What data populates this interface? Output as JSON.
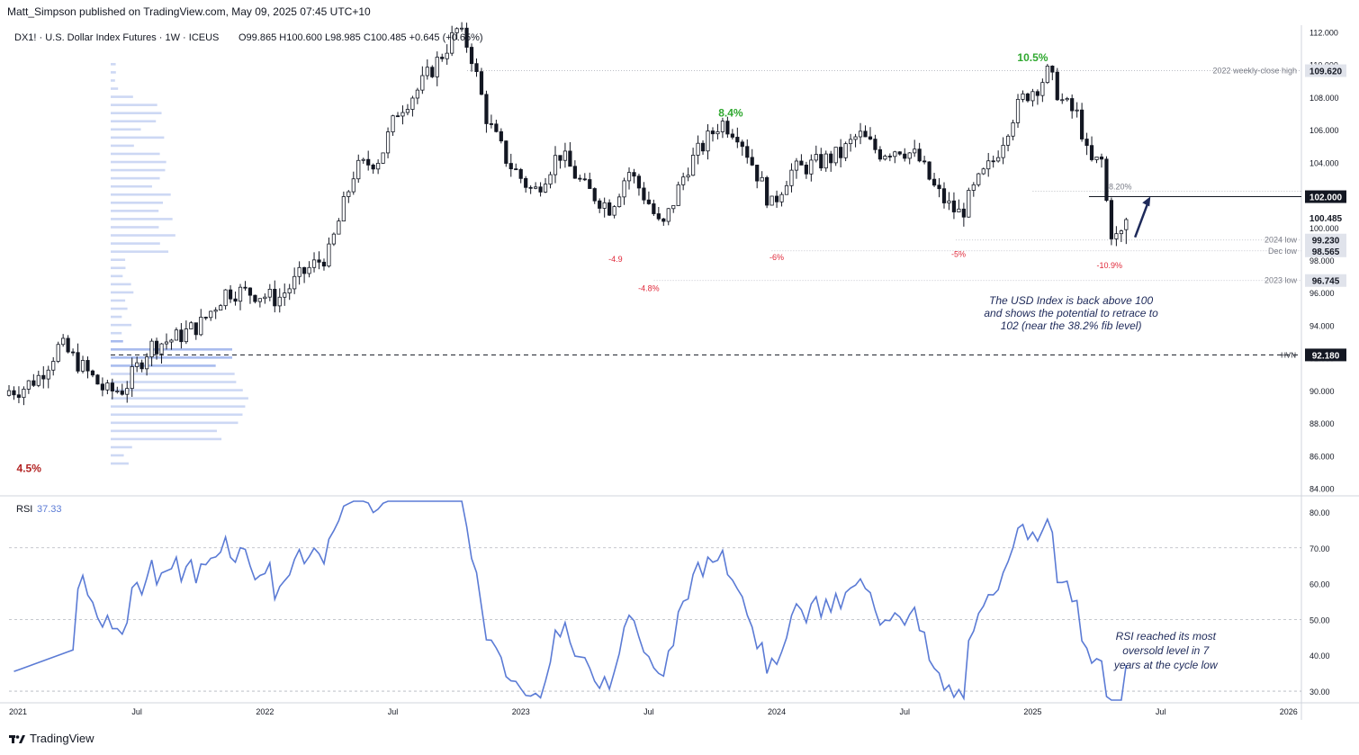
{
  "header": {
    "published_by": "Matt_Simpson published on TradingView.com, May 09, 2025 07:45 UTC+10"
  },
  "symbol_line": {
    "text": "DX1! · U.S. Dollar Index Futures · 1W · ICEUS",
    "ohlc": "O99.865  H100.600  L98.985  C100.485  +0.645 (+0.65%)"
  },
  "footer": {
    "brand": "TradingView"
  },
  "colors": {
    "up": "#787b86",
    "candle_fill_up": "#ffffff",
    "candle_down": "#131722",
    "rsi_line": "#5b7bd5",
    "volume_profile": "#c8d4f3",
    "volume_profile_poc": "#9fb4ec",
    "green_label": "#2fa82f",
    "red_label": "#e0293a",
    "arrow": "#1e2a5a",
    "hvn_line": "#131722"
  },
  "chart_data": [
    {
      "type": "candlestick",
      "title": "DX1! · U.S. Dollar Index Futures · 1W · ICEUS",
      "y_ticks": [
        84,
        86,
        88,
        90,
        92,
        94,
        96,
        98,
        100,
        102,
        104,
        106,
        108,
        110,
        112
      ],
      "y_tick_labels": [
        "84.000",
        "86.000",
        "88.000",
        "90.000",
        "92.000",
        "94.000",
        "96.000",
        "98.000",
        "100.000",
        "102.000",
        "104.000",
        "106.000",
        "108.000",
        "110.000",
        "112.000"
      ],
      "ylim": [
        83.7,
        112.3
      ],
      "x_ticks": [
        {
          "label": "2021",
          "t": 2021.0
        },
        {
          "label": "Jul",
          "t": 2021.5
        },
        {
          "label": "2022",
          "t": 2022.0
        },
        {
          "label": "Jul",
          "t": 2022.5
        },
        {
          "label": "2023",
          "t": 2023.0
        },
        {
          "label": "Jul",
          "t": 2023.5
        },
        {
          "label": "2024",
          "t": 2024.0
        },
        {
          "label": "Jul",
          "t": 2024.5
        },
        {
          "label": "2025",
          "t": 2025.0
        },
        {
          "label": "Jul",
          "t": 2025.5
        },
        {
          "label": "2026",
          "t": 2026.0
        }
      ],
      "xlim": [
        2021.0,
        2026.05
      ],
      "close_anchors": [
        [
          2021.0,
          90.0
        ],
        [
          2021.05,
          90.1
        ],
        [
          2021.12,
          90.9
        ],
        [
          2021.2,
          92.8
        ],
        [
          2021.3,
          91.2
        ],
        [
          2021.38,
          89.9
        ],
        [
          2021.45,
          90.1
        ],
        [
          2021.55,
          92.7
        ],
        [
          2021.65,
          93.2
        ],
        [
          2021.75,
          94.1
        ],
        [
          2021.85,
          96.1
        ],
        [
          2021.95,
          96.0
        ],
        [
          2022.05,
          95.6
        ],
        [
          2022.15,
          97.2
        ],
        [
          2022.25,
          98.4
        ],
        [
          2022.35,
          103.5
        ],
        [
          2022.45,
          104.3
        ],
        [
          2022.52,
          107.2
        ],
        [
          2022.6,
          108.5
        ],
        [
          2022.7,
          110.8
        ],
        [
          2022.75,
          112.1
        ],
        [
          2022.8,
          111.0
        ],
        [
          2022.87,
          106.5
        ],
        [
          2022.95,
          104.0
        ],
        [
          2023.05,
          102.1
        ],
        [
          2023.15,
          104.6
        ],
        [
          2023.25,
          102.4
        ],
        [
          2023.35,
          101.2
        ],
        [
          2023.42,
          103.5
        ],
        [
          2023.5,
          101.5
        ],
        [
          2023.55,
          99.8
        ],
        [
          2023.65,
          103.7
        ],
        [
          2023.72,
          105.2
        ],
        [
          2023.78,
          106.5
        ],
        [
          2023.85,
          105.8
        ],
        [
          2023.92,
          103.4
        ],
        [
          2023.98,
          101.3
        ],
        [
          2024.05,
          103.4
        ],
        [
          2024.15,
          103.9
        ],
        [
          2024.25,
          104.5
        ],
        [
          2024.32,
          105.7
        ],
        [
          2024.4,
          104.6
        ],
        [
          2024.48,
          104.9
        ],
        [
          2024.55,
          104.3
        ],
        [
          2024.62,
          102.3
        ],
        [
          2024.68,
          101.2
        ],
        [
          2024.72,
          100.8
        ],
        [
          2024.78,
          102.6
        ],
        [
          2024.85,
          104.2
        ],
        [
          2024.92,
          106.8
        ],
        [
          2024.97,
          108.1
        ],
        [
          2025.02,
          108.7
        ],
        [
          2025.06,
          109.5
        ],
        [
          2025.12,
          107.6
        ],
        [
          2025.18,
          106.8
        ],
        [
          2025.22,
          103.9
        ],
        [
          2025.27,
          104.1
        ],
        [
          2025.3,
          100.0
        ],
        [
          2025.32,
          99.3
        ],
        [
          2025.35,
          99.6
        ],
        [
          2025.37,
          100.49
        ]
      ],
      "levels": [
        {
          "label": "2022 weekly-close high",
          "value": 109.62,
          "badge": "109.620"
        },
        {
          "label": "2024 low",
          "value": 99.23,
          "badge": "99.230"
        },
        {
          "label": "Dec low",
          "value": 98.565,
          "badge": "98.565"
        },
        {
          "label": "2023 low",
          "value": 96.745,
          "badge": "96.745"
        },
        {
          "label": "HVN",
          "value": 92.18,
          "badge": "92.180"
        },
        {
          "label": "38.20%",
          "value": 102.0,
          "badge": "102.000"
        }
      ],
      "last_price_badge": "100.485",
      "annotations": [
        {
          "text": "4.5%",
          "color": "red"
        },
        {
          "text": "8.4%",
          "color": "green"
        },
        {
          "text": "10.5%",
          "color": "green"
        },
        {
          "text": "-4.9",
          "color": "red"
        },
        {
          "text": "-4.8%",
          "color": "red"
        },
        {
          "text": "-6%",
          "color": "red"
        },
        {
          "text": "-5%",
          "color": "red"
        },
        {
          "text": "-10.9%",
          "color": "red"
        }
      ],
      "comment_lines": [
        "The USD Index is back above 100",
        "and shows the potential to retrace to",
        "102 (near the 38.2% fib level)"
      ]
    },
    {
      "type": "line",
      "title": "RSI",
      "current_value": "37.33",
      "y_ticks": [
        30,
        40,
        50,
        60,
        70,
        80
      ],
      "y_tick_labels": [
        "30.00",
        "40.00",
        "50.00",
        "60.00",
        "70.00",
        "80.00"
      ],
      "reference_lines": [
        30,
        50,
        70
      ],
      "ylim": [
        27.5,
        83.5
      ],
      "comment_lines": [
        "RSI reached its most",
        "oversold level in 7",
        "years at the cycle low"
      ]
    }
  ]
}
